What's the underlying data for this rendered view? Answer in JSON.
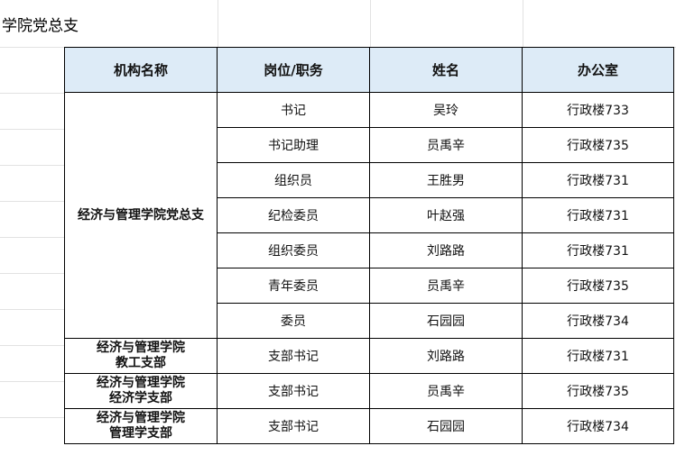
{
  "title": "学院党总支",
  "header_color": "#ddebf7",
  "headers": [
    "机构名称",
    "岗位/职务",
    "姓名",
    "办公室"
  ],
  "groups": [
    {
      "org": "经济与管理学院党总支",
      "rows": [
        [
          "书记",
          "吴玲",
          "行政楼733"
        ],
        [
          "书记助理",
          "员禹辛",
          "行政楼735"
        ],
        [
          "组织员",
          "王胜男",
          "行政楼731"
        ],
        [
          "纪检委员",
          "叶赵强",
          "行政楼731"
        ],
        [
          "组织委员",
          "刘路路",
          "行政楼731"
        ],
        [
          "青年委员",
          "员禹辛",
          "行政楼735"
        ],
        [
          "委员",
          "石园园",
          "行政楼734"
        ]
      ]
    },
    {
      "org_line1": "经济与管理学院",
      "org_line2": "教工支部",
      "rows": [
        [
          "支部书记",
          "刘路路",
          "行政楼731"
        ]
      ]
    },
    {
      "org_line1": "经济与管理学院",
      "org_line2": "经济学支部",
      "rows": [
        [
          "支部书记",
          "员禹辛",
          "行政楼735"
        ]
      ]
    },
    {
      "org_line1": "经济与管理学院",
      "org_line2": "管理学支部",
      "rows": [
        [
          "支部书记",
          "石园园",
          "行政楼734"
        ]
      ]
    }
  ]
}
